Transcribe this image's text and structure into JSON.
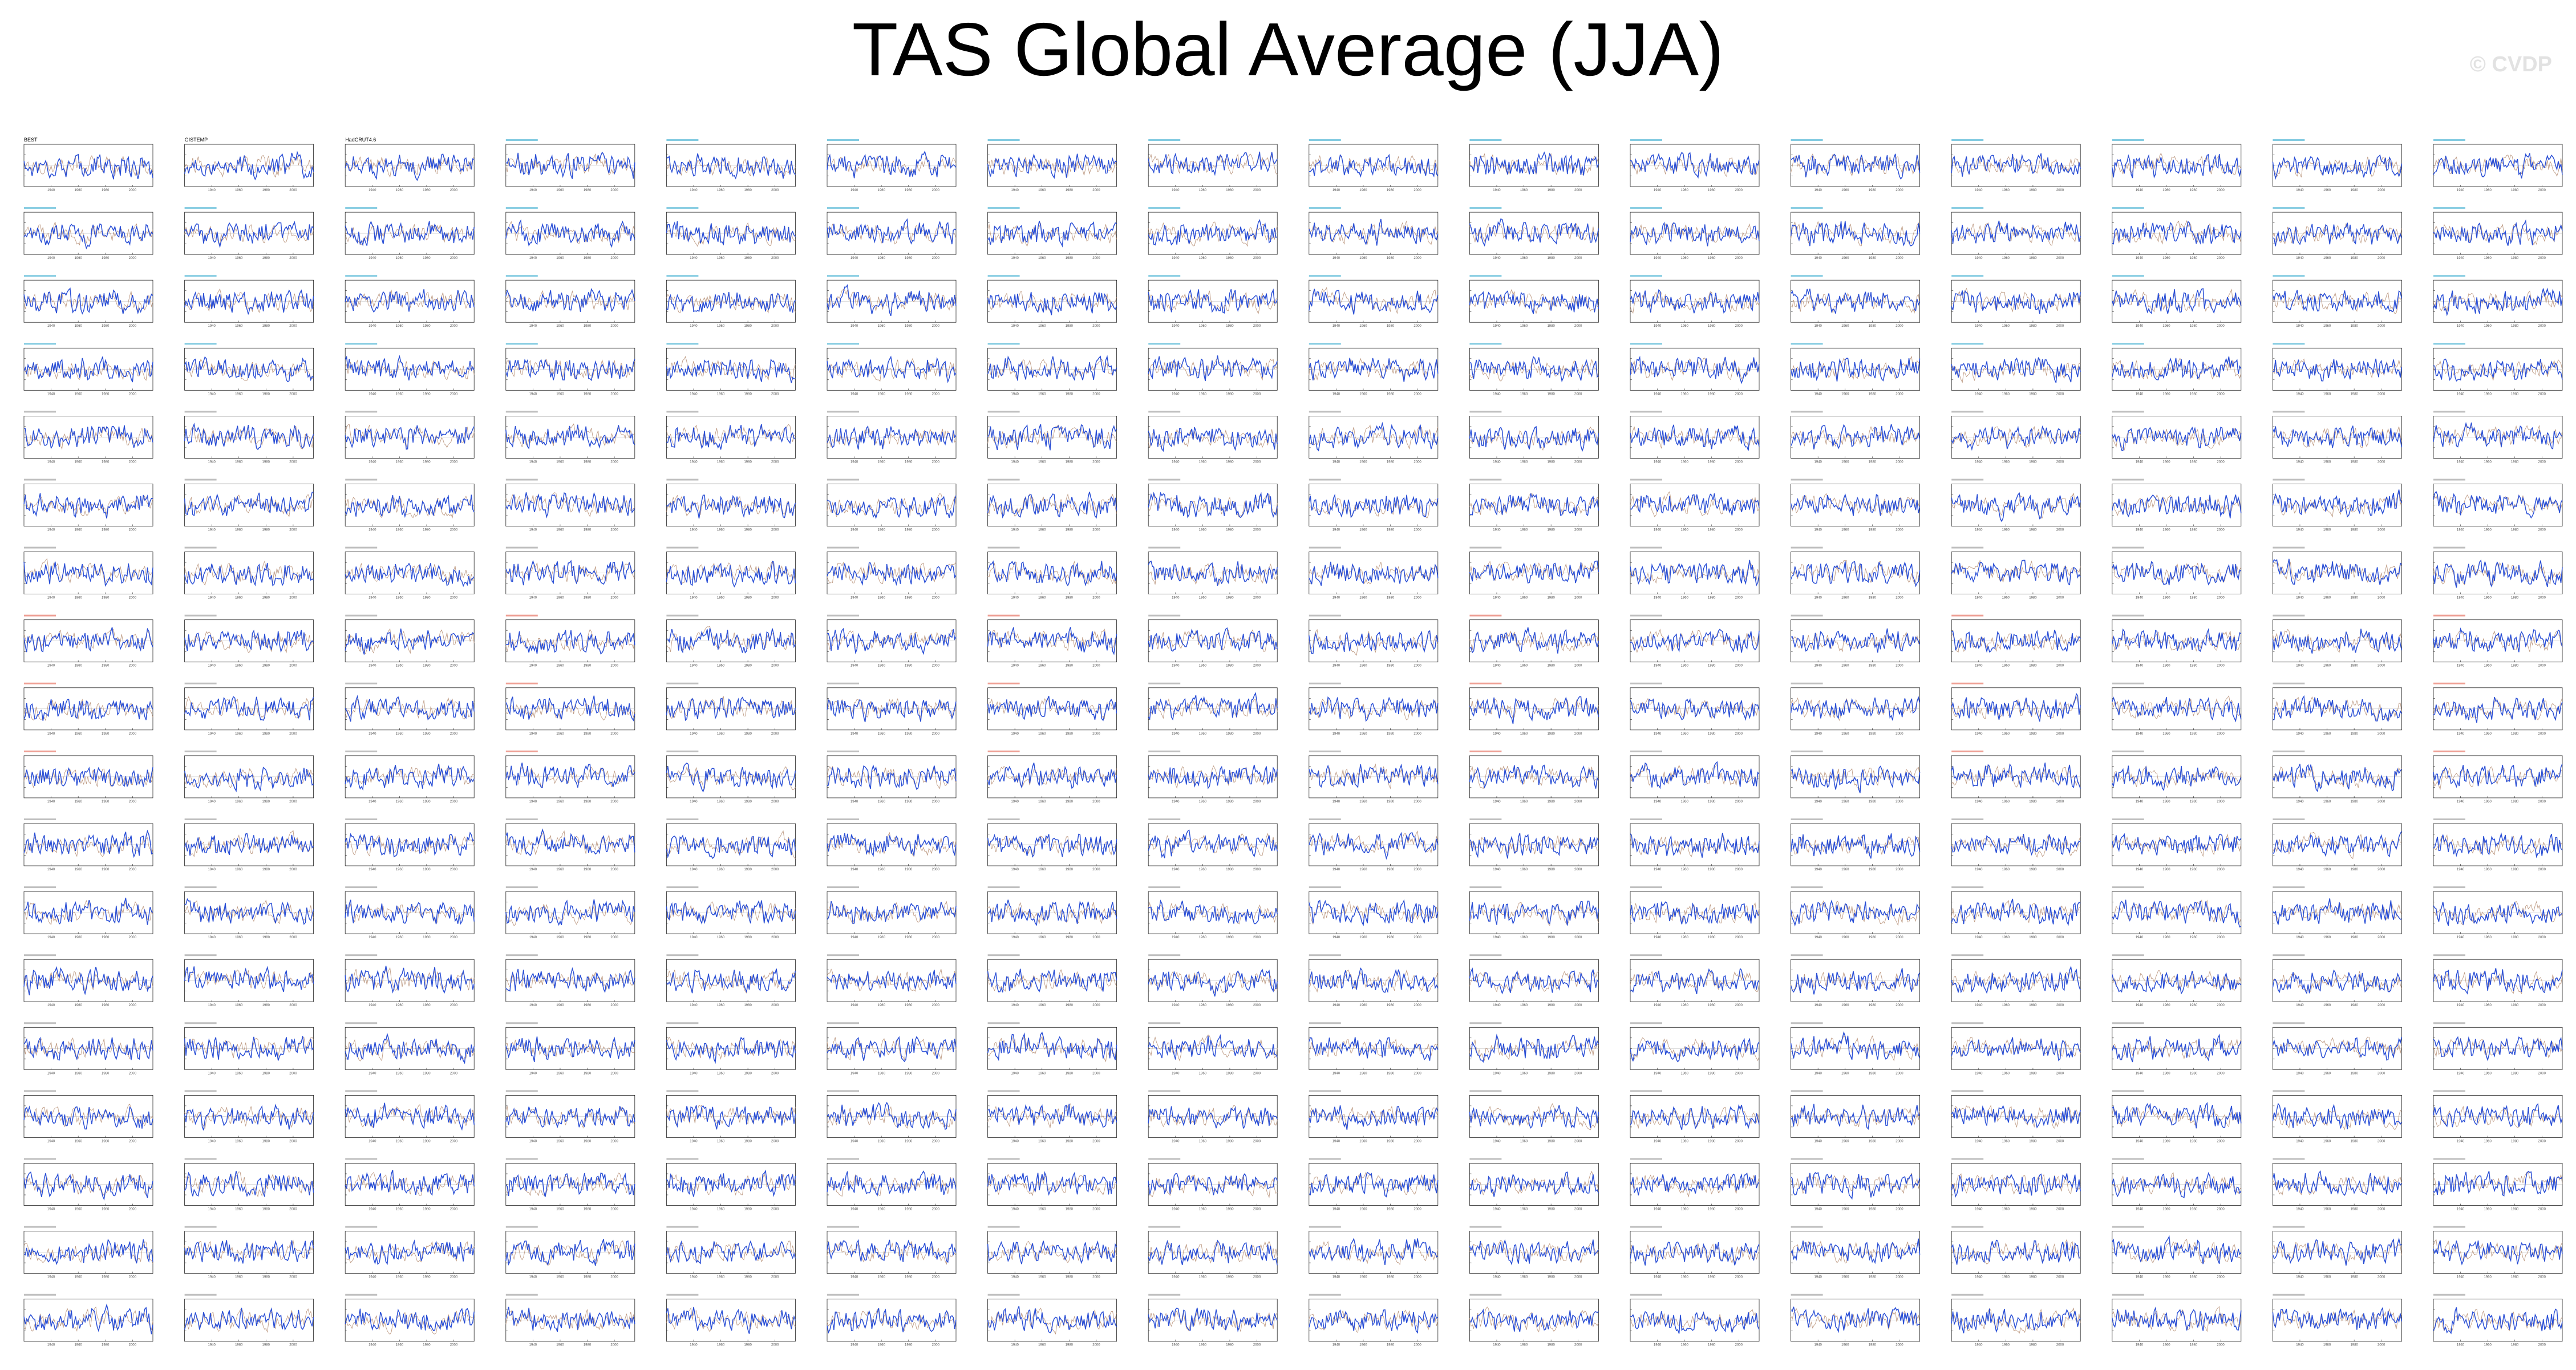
{
  "header": {
    "title": "TAS Global Average (JJA)",
    "watermark": "© CVDP"
  },
  "colors": {
    "series": "#2a4fd6",
    "reference": "#b38a6e",
    "axes": "#222222",
    "text_cyan": "#1da1c8",
    "text_gray": "#8a8a8a",
    "text_red": "#e0503c",
    "text_black": "#000000"
  },
  "chart_data": {
    "type": "line",
    "layout": {
      "rows": 18,
      "columns": 16
    },
    "observation_panels": [
      {
        "title": "BEST"
      },
      {
        "title": "GISTEMP"
      },
      {
        "title": "HadCRUT4.6"
      }
    ],
    "panel_style": {
      "series": "global average tas anomaly (blue)",
      "reference": "observational reference (tan)",
      "xlim": [
        1920,
        2015
      ],
      "x_ticks": [
        1940,
        1960,
        1980,
        2000
      ]
    }
  }
}
